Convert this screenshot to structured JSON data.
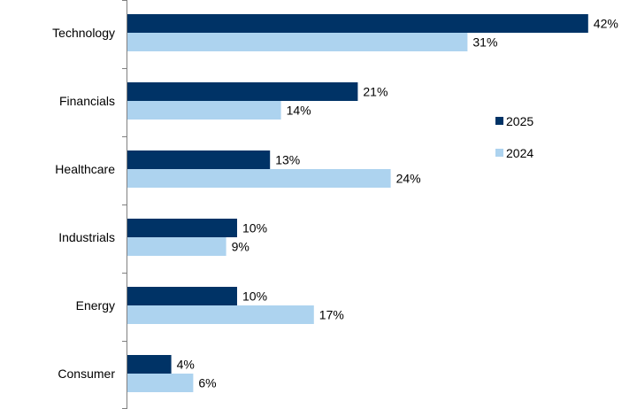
{
  "chart_data": {
    "type": "bar",
    "orientation": "horizontal",
    "categories": [
      "Technology",
      "Financials",
      "Healthcare",
      "Industrials",
      "Energy",
      "Consumer"
    ],
    "series": [
      {
        "name": "2025",
        "values": [
          42,
          21,
          13,
          10,
          10,
          4
        ],
        "labels": [
          "42%",
          "21%",
          "13%",
          "10%",
          "10%",
          "4%"
        ],
        "color": "#003366"
      },
      {
        "name": "2024",
        "values": [
          31,
          14,
          24,
          9,
          17,
          6
        ],
        "labels": [
          "31%",
          "14%",
          "24%",
          "9%",
          "17%",
          "6%"
        ],
        "color": "#add3ef"
      }
    ],
    "title": "",
    "xlabel": "",
    "ylabel": "",
    "xlim": [
      0,
      42
    ],
    "value_unit": "%",
    "grid": false,
    "legend_position": "right"
  }
}
